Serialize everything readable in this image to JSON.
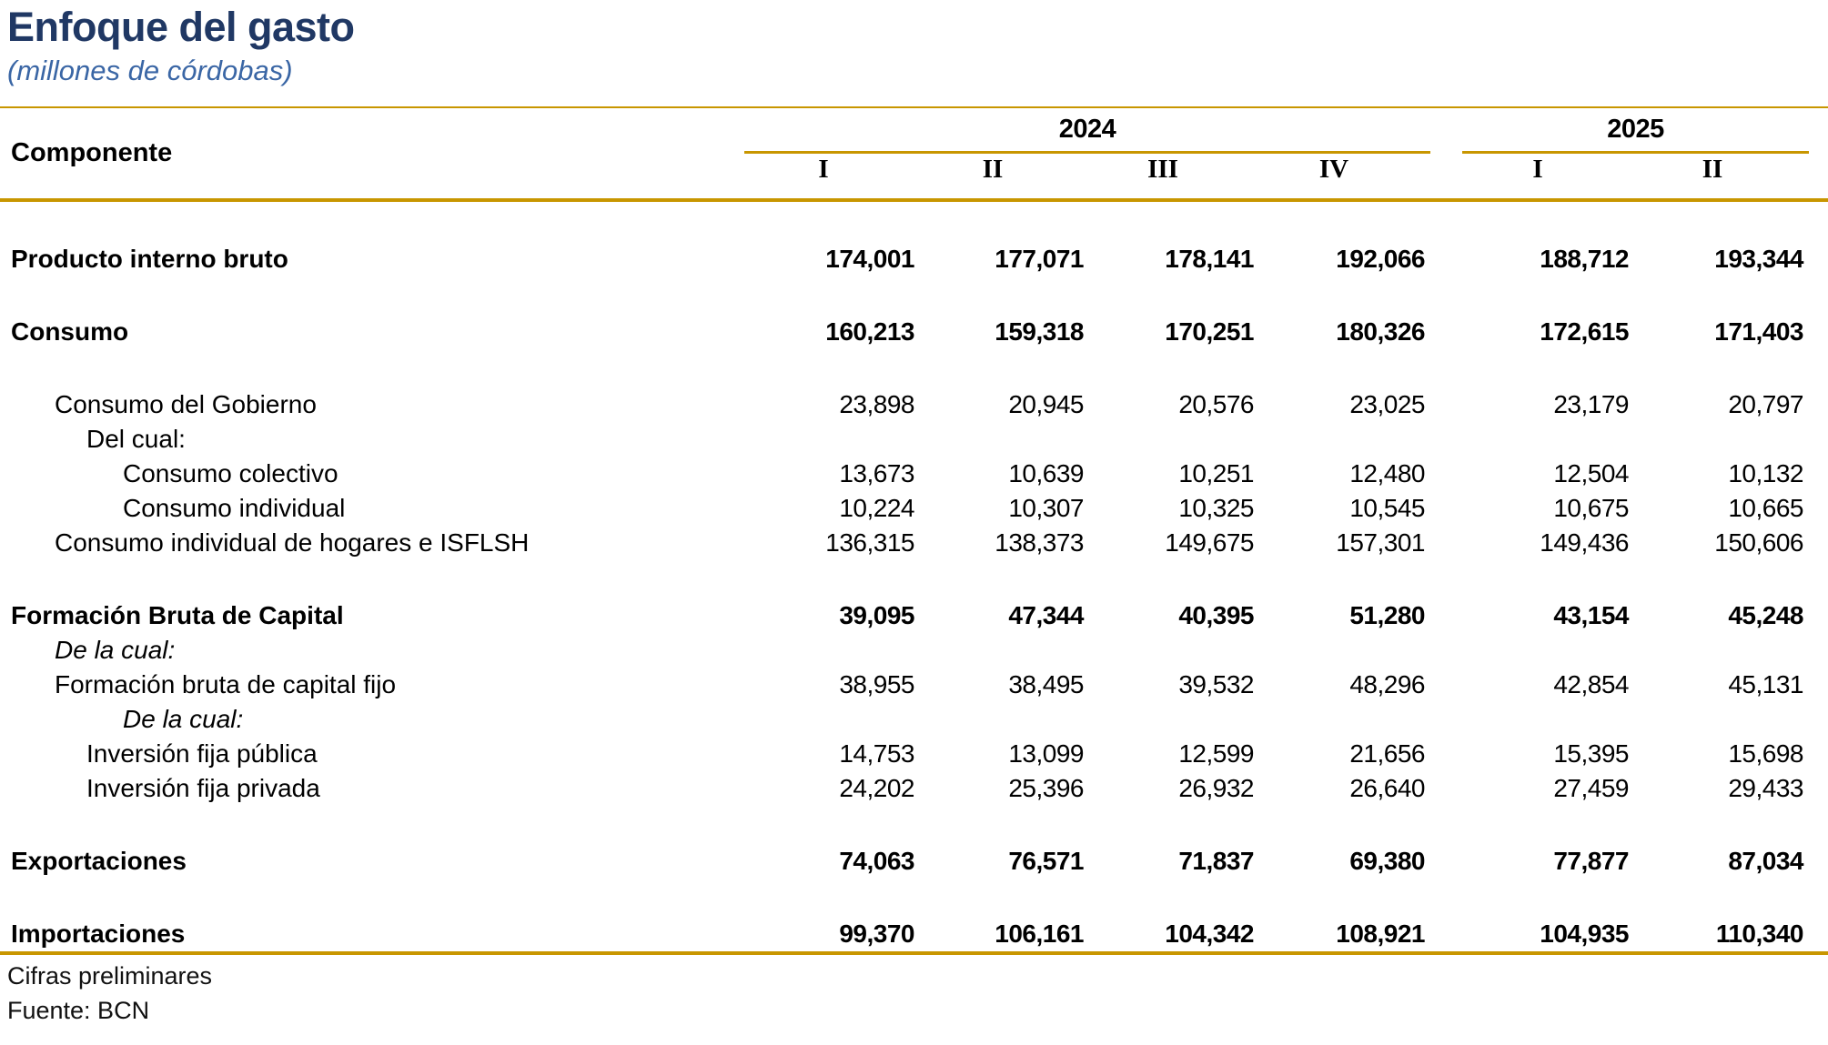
{
  "title": "Enfoque del gasto",
  "subtitle": "(millones de córdobas)",
  "colors": {
    "title_navy": "#203864",
    "subtitle_blue": "#3A66A5",
    "gold_lines": "#C89600",
    "text": "#000000"
  },
  "table": {
    "component_header": "Componente",
    "year_groups": [
      {
        "label": "2024",
        "quarters": [
          "I",
          "II",
          "III",
          "IV"
        ]
      },
      {
        "label": "2025",
        "quarters": [
          "I",
          "II"
        ]
      }
    ],
    "rows": [
      {
        "label": "Producto interno bruto",
        "style": "bold",
        "indent": 0,
        "group_start": true,
        "values": [
          "174,001",
          "177,071",
          "178,141",
          "192,066",
          "188,712",
          "193,344"
        ]
      },
      {
        "label": "Consumo",
        "style": "bold",
        "indent": 0,
        "group_start": true,
        "values": [
          "160,213",
          "159,318",
          "170,251",
          "180,326",
          "172,615",
          "171,403"
        ]
      },
      {
        "label": "Consumo del Gobierno",
        "style": "normal",
        "indent": 1,
        "group_start": true,
        "values": [
          "23,898",
          "20,945",
          "20,576",
          "23,025",
          "23,179",
          "20,797"
        ]
      },
      {
        "label": "Del cual:",
        "style": "normal",
        "indent": 2,
        "group_start": false,
        "values": []
      },
      {
        "label": "Consumo colectivo",
        "style": "normal",
        "indent": 3,
        "group_start": false,
        "values": [
          "13,673",
          "10,639",
          "10,251",
          "12,480",
          "12,504",
          "10,132"
        ]
      },
      {
        "label": "Consumo individual",
        "style": "normal",
        "indent": 3,
        "group_start": false,
        "values": [
          "10,224",
          "10,307",
          "10,325",
          "10,545",
          "10,675",
          "10,665"
        ]
      },
      {
        "label": "Consumo individual de hogares e ISFLSH",
        "style": "normal",
        "indent": 1,
        "group_start": false,
        "values": [
          "136,315",
          "138,373",
          "149,675",
          "157,301",
          "149,436",
          "150,606"
        ]
      },
      {
        "label": "Formación Bruta de Capital",
        "style": "bold",
        "indent": 0,
        "group_start": true,
        "values": [
          "39,095",
          "47,344",
          "40,395",
          "51,280",
          "43,154",
          "45,248"
        ]
      },
      {
        "label": "De la cual:",
        "style": "italic",
        "indent": 1,
        "group_start": false,
        "values": []
      },
      {
        "label": "Formación bruta de capital fijo",
        "style": "normal",
        "indent": 1,
        "group_start": false,
        "values": [
          "38,955",
          "38,495",
          "39,532",
          "48,296",
          "42,854",
          "45,131"
        ]
      },
      {
        "label": "De la cual:",
        "style": "italic",
        "indent": 3,
        "group_start": false,
        "values": []
      },
      {
        "label": "Inversión fija pública",
        "style": "normal",
        "indent": 2,
        "group_start": false,
        "values": [
          "14,753",
          "13,099",
          "12,599",
          "21,656",
          "15,395",
          "15,698"
        ]
      },
      {
        "label": "Inversión fija privada",
        "style": "normal",
        "indent": 2,
        "group_start": false,
        "values": [
          "24,202",
          "25,396",
          "26,932",
          "26,640",
          "27,459",
          "29,433"
        ]
      },
      {
        "label": "Exportaciones",
        "style": "bold",
        "indent": 0,
        "group_start": true,
        "values": [
          "74,063",
          "76,571",
          "71,837",
          "69,380",
          "77,877",
          "87,034"
        ]
      },
      {
        "label": "Importaciones",
        "style": "bold",
        "indent": 0,
        "group_start": true,
        "values": [
          "99,370",
          "106,161",
          "104,342",
          "108,921",
          "104,935",
          "110,340"
        ]
      }
    ]
  },
  "footer": {
    "note": "Cifras preliminares",
    "source": "Fuente: BCN"
  },
  "chart_data": {
    "type": "table",
    "title": "Enfoque del gasto",
    "subtitle": "(millones de córdobas)",
    "columns": [
      "Componente",
      "2024 I",
      "2024 II",
      "2024 III",
      "2024 IV",
      "2025 I",
      "2025 II"
    ],
    "rows": [
      [
        "Producto interno bruto",
        174001,
        177071,
        178141,
        192066,
        188712,
        193344
      ],
      [
        "Consumo",
        160213,
        159318,
        170251,
        180326,
        172615,
        171403
      ],
      [
        "Consumo del Gobierno",
        23898,
        20945,
        20576,
        23025,
        23179,
        20797
      ],
      [
        "Consumo colectivo",
        13673,
        10639,
        10251,
        12480,
        12504,
        10132
      ],
      [
        "Consumo individual",
        10224,
        10307,
        10325,
        10545,
        10675,
        10665
      ],
      [
        "Consumo individual de hogares e ISFLSH",
        136315,
        138373,
        149675,
        157301,
        149436,
        150606
      ],
      [
        "Formación Bruta de Capital",
        39095,
        47344,
        40395,
        51280,
        43154,
        45248
      ],
      [
        "Formación bruta de capital fijo",
        38955,
        38495,
        39532,
        48296,
        42854,
        45131
      ],
      [
        "Inversión fija pública",
        14753,
        13099,
        12599,
        21656,
        15395,
        15698
      ],
      [
        "Inversión fija privada",
        24202,
        25396,
        26932,
        26640,
        27459,
        29433
      ],
      [
        "Exportaciones",
        74063,
        76571,
        71837,
        69380,
        77877,
        87034
      ],
      [
        "Importaciones",
        99370,
        106161,
        104342,
        108921,
        104935,
        110340
      ]
    ],
    "notes": [
      "Cifras preliminares",
      "Fuente: BCN"
    ]
  }
}
